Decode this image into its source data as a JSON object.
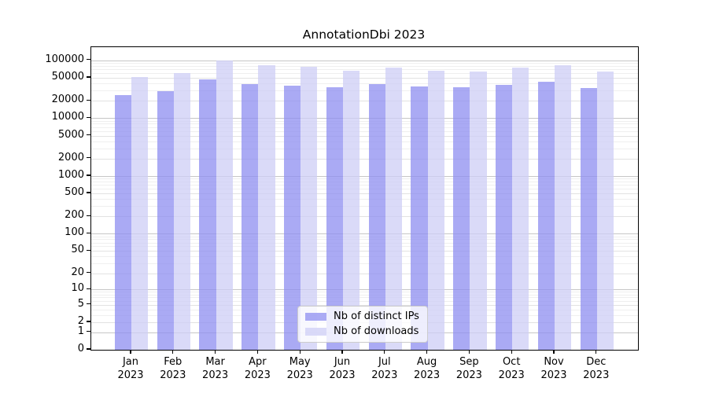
{
  "chart_data": {
    "type": "bar",
    "title": "AnnotationDbi 2023",
    "categories": [
      "Jan",
      "Feb",
      "Mar",
      "Apr",
      "May",
      "Jun",
      "Jul",
      "Aug",
      "Sep",
      "Oct",
      "Nov",
      "Dec"
    ],
    "category_year": "2023",
    "series": [
      {
        "name": "Nb of distinct IPs",
        "color": "#8f8ff0",
        "values": [
          24800,
          28900,
          46200,
          39200,
          36400,
          33800,
          38300,
          35200,
          34500,
          37200,
          42600,
          32700
        ]
      },
      {
        "name": "Nb of downloads",
        "color": "#cfcff6",
        "values": [
          51400,
          59300,
          97900,
          81100,
          77100,
          65900,
          75500,
          65500,
          63900,
          73800,
          81100,
          64800
        ]
      }
    ],
    "y_scale": "log1p",
    "y_ticks": [
      0,
      1,
      2,
      5,
      10,
      20,
      50,
      100,
      200,
      500,
      1000,
      2000,
      5000,
      10000,
      20000,
      50000,
      100000
    ],
    "ylim": [
      0,
      170000
    ],
    "xlabel": "",
    "ylabel": "",
    "grid": true,
    "legend_position": "lower center"
  }
}
